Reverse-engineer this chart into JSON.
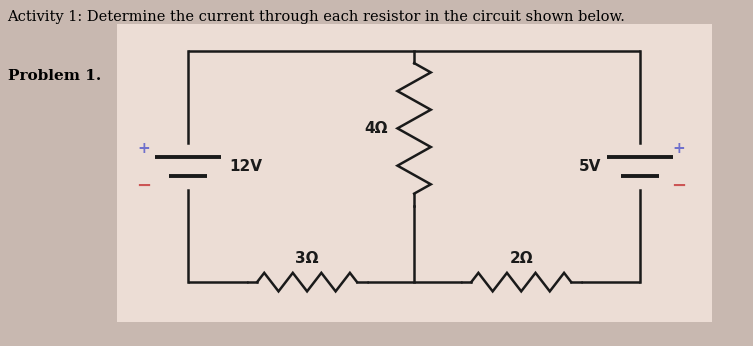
{
  "title_text": "Activity 1: Determine the current through each resistor in the circuit shown below.",
  "problem_text": "Problem 1.",
  "title_fontsize": 10.5,
  "problem_fontsize": 11,
  "bg_color": "#ecddd5",
  "outer_bg": "#c8b8b0",
  "line_color": "#1a1a1a",
  "line_width": 1.8,
  "battery1_label": "12V",
  "battery2_label": "5V",
  "resistor_top_label": "4Ω",
  "resistor_bot_left_label": "3Ω",
  "resistor_bot_right_label": "2Ω",
  "plus_color": "#7070cc",
  "minus_color": "#cc5555"
}
